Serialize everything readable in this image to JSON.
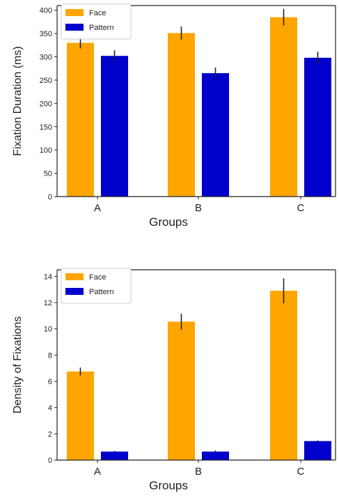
{
  "colors": {
    "face": "#FFA500",
    "pattern": "#0000CD",
    "axis": "#222222",
    "error": "#222222"
  },
  "chart_data": [
    {
      "type": "bar",
      "title": "",
      "xlabel": "Groups",
      "ylabel": "Fixation Duration (ms)",
      "categories": [
        "A",
        "B",
        "C"
      ],
      "ylim": [
        0,
        410
      ],
      "yticks": [
        "0",
        "50",
        "100",
        "150",
        "200",
        "250",
        "300",
        "350",
        "400"
      ],
      "ytick_values": [
        0,
        50,
        100,
        150,
        200,
        250,
        300,
        350,
        400
      ],
      "grid": false,
      "legend": "top-left",
      "series": [
        {
          "name": "Face",
          "values": [
            330,
            351,
            385
          ],
          "errors": [
            12,
            14,
            18
          ]
        },
        {
          "name": "Pattern",
          "values": [
            302,
            265,
            298
          ],
          "errors": [
            12,
            12,
            13
          ]
        }
      ]
    },
    {
      "type": "bar",
      "title": "",
      "xlabel": "Groups",
      "ylabel": "Density of Fixations",
      "categories": [
        "A",
        "B",
        "C"
      ],
      "ylim": [
        0,
        14.5
      ],
      "yticks": [
        "0",
        "2",
        "4",
        "6",
        "8",
        "10",
        "12",
        "14"
      ],
      "ytick_values": [
        0,
        2,
        4,
        6,
        8,
        10,
        12,
        14
      ],
      "grid": false,
      "legend": "top-left",
      "series": [
        {
          "name": "Face",
          "values": [
            6.75,
            10.55,
            12.9
          ],
          "errors": [
            0.3,
            0.6,
            0.95
          ]
        },
        {
          "name": "Pattern",
          "values": [
            0.65,
            0.65,
            1.45
          ],
          "errors": [
            0.05,
            0.08,
            0.05
          ]
        }
      ]
    }
  ]
}
